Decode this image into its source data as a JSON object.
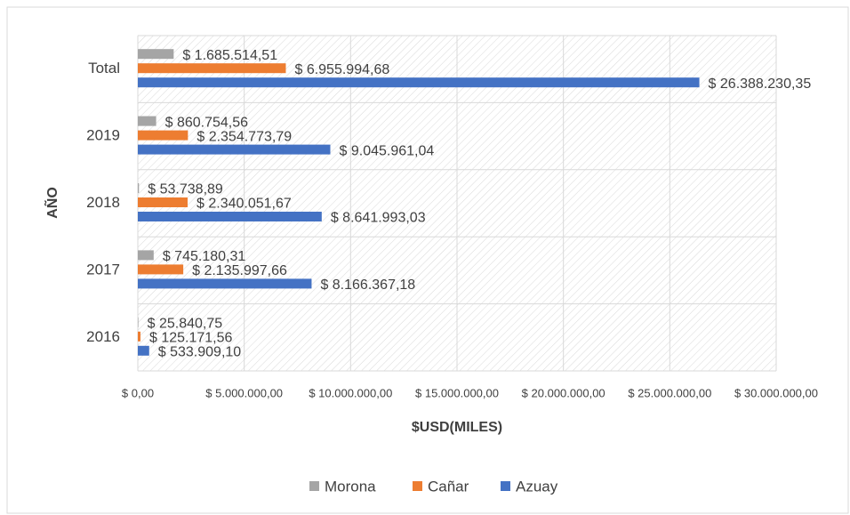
{
  "chart_data": {
    "type": "bar",
    "orientation": "horizontal",
    "xlabel": "$USD(MILES)",
    "ylabel": "AÑO",
    "categories": [
      "Total",
      "2019",
      "2018",
      "2017",
      "2016"
    ],
    "series": [
      {
        "name": "Morona",
        "color": "#a5a5a5",
        "values": [
          1685514.51,
          860754.56,
          53738.89,
          745180.31,
          25840.75
        ],
        "value_labels": [
          "$ 1.685.514,51",
          "$ 860.754,56",
          "$ 53.738,89",
          "$ 745.180,31",
          "$ 25.840,75"
        ]
      },
      {
        "name": "Cañar",
        "color": "#ed7d31",
        "values": [
          6955994.68,
          2354773.79,
          2340051.67,
          2135997.66,
          125171.56
        ],
        "value_labels": [
          "$ 6.955.994,68",
          "$ 2.354.773,79",
          "$ 2.340.051,67",
          "$ 2.135.997,66",
          "$ 125.171,56"
        ]
      },
      {
        "name": "Azuay",
        "color": "#4472c4",
        "values": [
          26388230.35,
          9045961.04,
          8641993.03,
          8166367.18,
          533909.1
        ],
        "value_labels": [
          "$ 26.388.230,35",
          "$ 9.045.961,04",
          "$ 8.641.993,03",
          "$ 8.166.367,18",
          "$ 533.909,10"
        ]
      }
    ],
    "xlim": [
      0,
      30000000
    ],
    "xticks": [
      {
        "value": 0,
        "label": "$ 0,00"
      },
      {
        "value": 5000000,
        "label": "$ 5.000.000,00"
      },
      {
        "value": 10000000,
        "label": "$ 10.000.000,00"
      },
      {
        "value": 15000000,
        "label": "$ 15.000.000,00"
      },
      {
        "value": 20000000,
        "label": "$ 20.000.000,00"
      },
      {
        "value": 25000000,
        "label": "$ 25.000.000,00"
      },
      {
        "value": 30000000,
        "label": "$ 30.000.000,00"
      }
    ],
    "grid": true,
    "legend": "bottom"
  }
}
